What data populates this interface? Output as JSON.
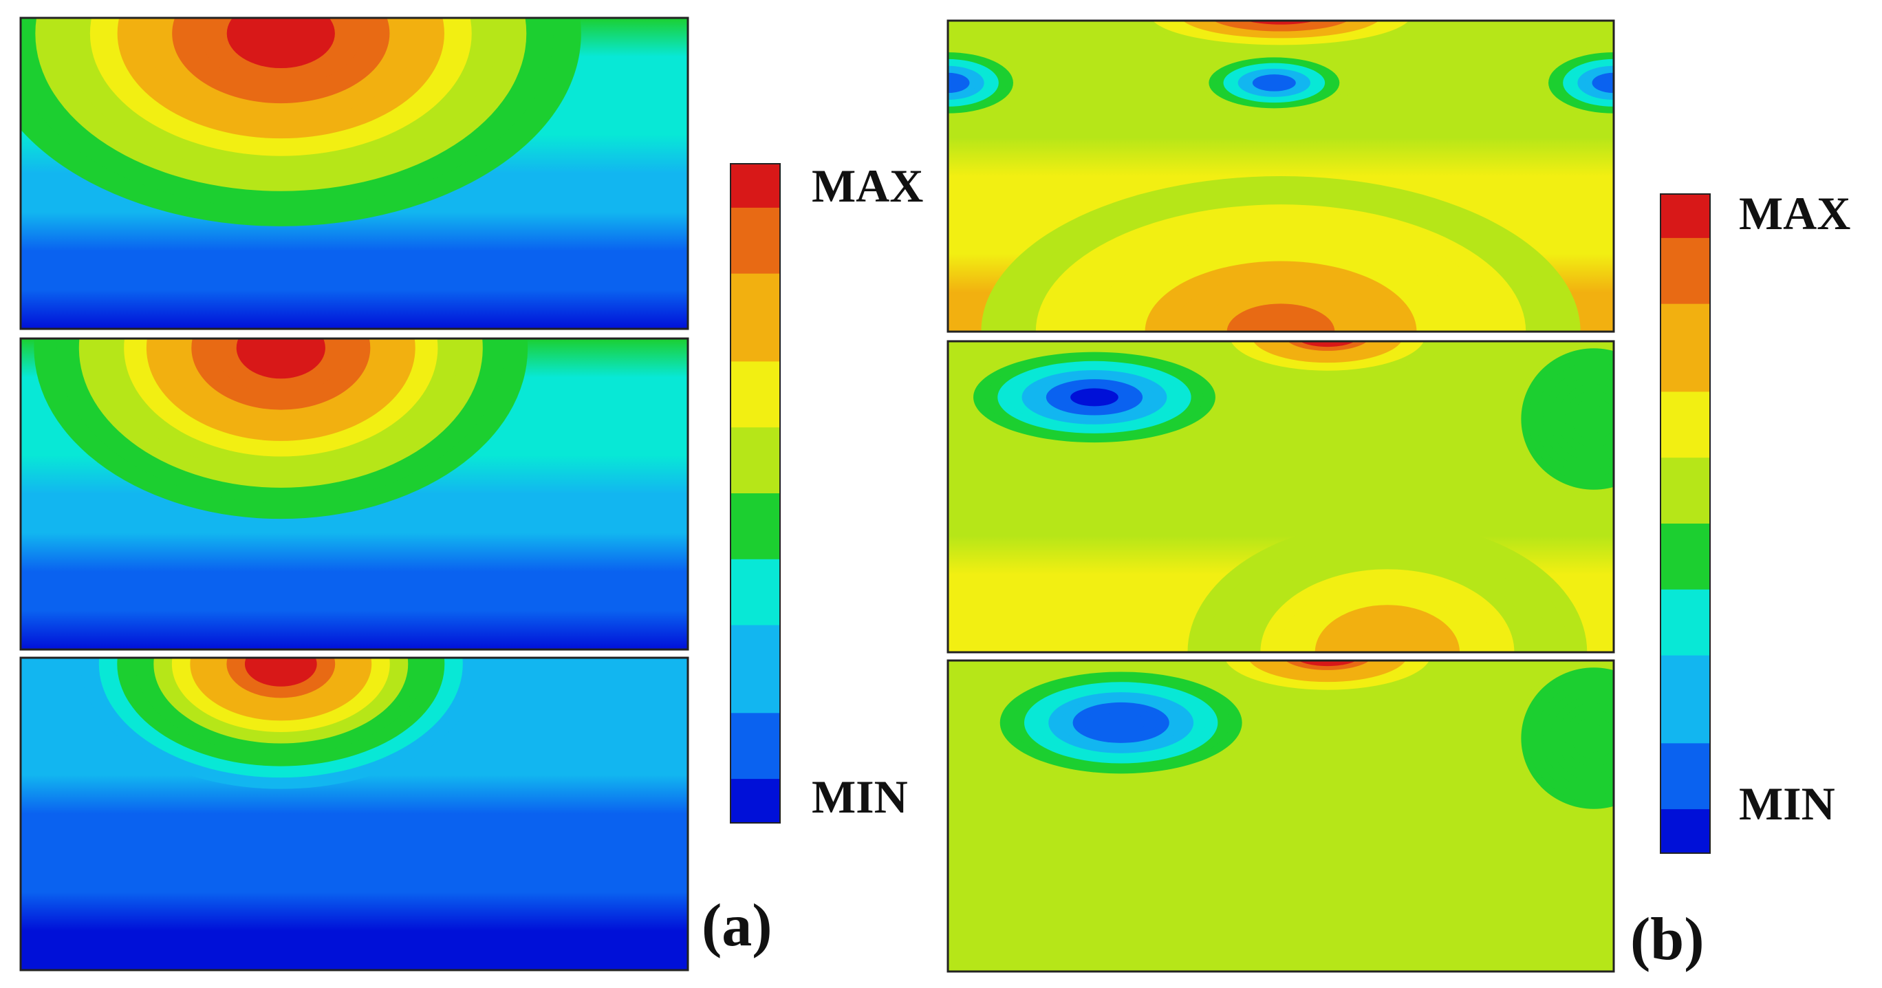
{
  "chart_data": [
    {
      "type": "heatmap",
      "panel_label": "(a)",
      "colorbar": {
        "max_label": "MAX",
        "min_label": "MIN"
      },
      "colormap": [
        "#0010d8",
        "#0a62f0",
        "#12b6f0",
        "#08e8d6",
        "#1ccf30",
        "#b6e618",
        "#f2ef12",
        "#f2b010",
        "#e86a14",
        "#d81818"
      ],
      "plots": [
        {
          "name": "a-top",
          "background": 0.4,
          "bottom_value": 0.02,
          "blobs": [
            {
              "center": [
                0.39,
                0.05
              ],
              "radii": [
                0.45,
                0.62
              ],
              "peak": 1.0
            }
          ]
        },
        {
          "name": "a-middle",
          "background": 0.4,
          "bottom_value": 0.02,
          "blobs": [
            {
              "center": [
                0.39,
                0.03
              ],
              "radii": [
                0.37,
                0.55
              ],
              "peak": 1.0
            }
          ]
        },
        {
          "name": "a-bottom",
          "background": 0.22,
          "bottom_value": 0.02,
          "blobs": [
            {
              "center": [
                0.39,
                0.02
              ],
              "radii": [
                0.3,
                0.4
              ],
              "peak": 1.0
            }
          ]
        }
      ]
    },
    {
      "type": "heatmap",
      "panel_label": "(b)",
      "colorbar": {
        "max_label": "MAX",
        "min_label": "MIN"
      },
      "colormap": [
        "#0010d8",
        "#0a62f0",
        "#12b6f0",
        "#08e8d6",
        "#1ccf30",
        "#b6e618",
        "#f2ef12",
        "#f2b010",
        "#e86a14",
        "#d81818"
      ],
      "plots": [
        {
          "name": "b-top",
          "background": 0.55,
          "bottom_value": 0.78,
          "blobs": [
            {
              "center": [
                0.5,
                -0.02
              ],
              "radii": [
                0.24,
                0.12
              ],
              "peak": 1.0
            },
            {
              "center": [
                0.0,
                0.2
              ],
              "radii": [
                0.12,
                0.12
              ],
              "peak": 0.1
            },
            {
              "center": [
                0.49,
                0.2
              ],
              "radii": [
                0.12,
                0.1
              ],
              "peak": 0.1
            },
            {
              "center": [
                1.0,
                0.2
              ],
              "radii": [
                0.12,
                0.12
              ],
              "peak": 0.1
            },
            {
              "center": [
                0.5,
                1.0
              ],
              "radii": [
                0.45,
                0.5
              ],
              "peak": 0.85
            }
          ]
        },
        {
          "name": "b-middle",
          "background": 0.5,
          "bottom_value": 0.7,
          "blobs": [
            {
              "center": [
                0.57,
                -0.02
              ],
              "radii": [
                0.18,
                0.14
              ],
              "peak": 1.0
            },
            {
              "center": [
                0.22,
                0.18
              ],
              "radii": [
                0.2,
                0.16
              ],
              "peak": 0.05
            },
            {
              "center": [
                0.97,
                0.25
              ],
              "radii": [
                0.12,
                0.25
              ],
              "peak": 0.42
            },
            {
              "center": [
                0.66,
                1.0
              ],
              "radii": [
                0.3,
                0.42
              ],
              "peak": 0.82
            }
          ]
        },
        {
          "name": "b-bottom",
          "background": 0.5,
          "bottom_value": 0.6,
          "blobs": [
            {
              "center": [
                0.57,
                -0.02
              ],
              "radii": [
                0.19,
                0.14
              ],
              "peak": 1.0
            },
            {
              "center": [
                0.26,
                0.2
              ],
              "radii": [
                0.2,
                0.18
              ],
              "peak": 0.06
            },
            {
              "center": [
                0.97,
                0.25
              ],
              "radii": [
                0.12,
                0.25
              ],
              "peak": 0.42
            }
          ]
        }
      ]
    }
  ]
}
